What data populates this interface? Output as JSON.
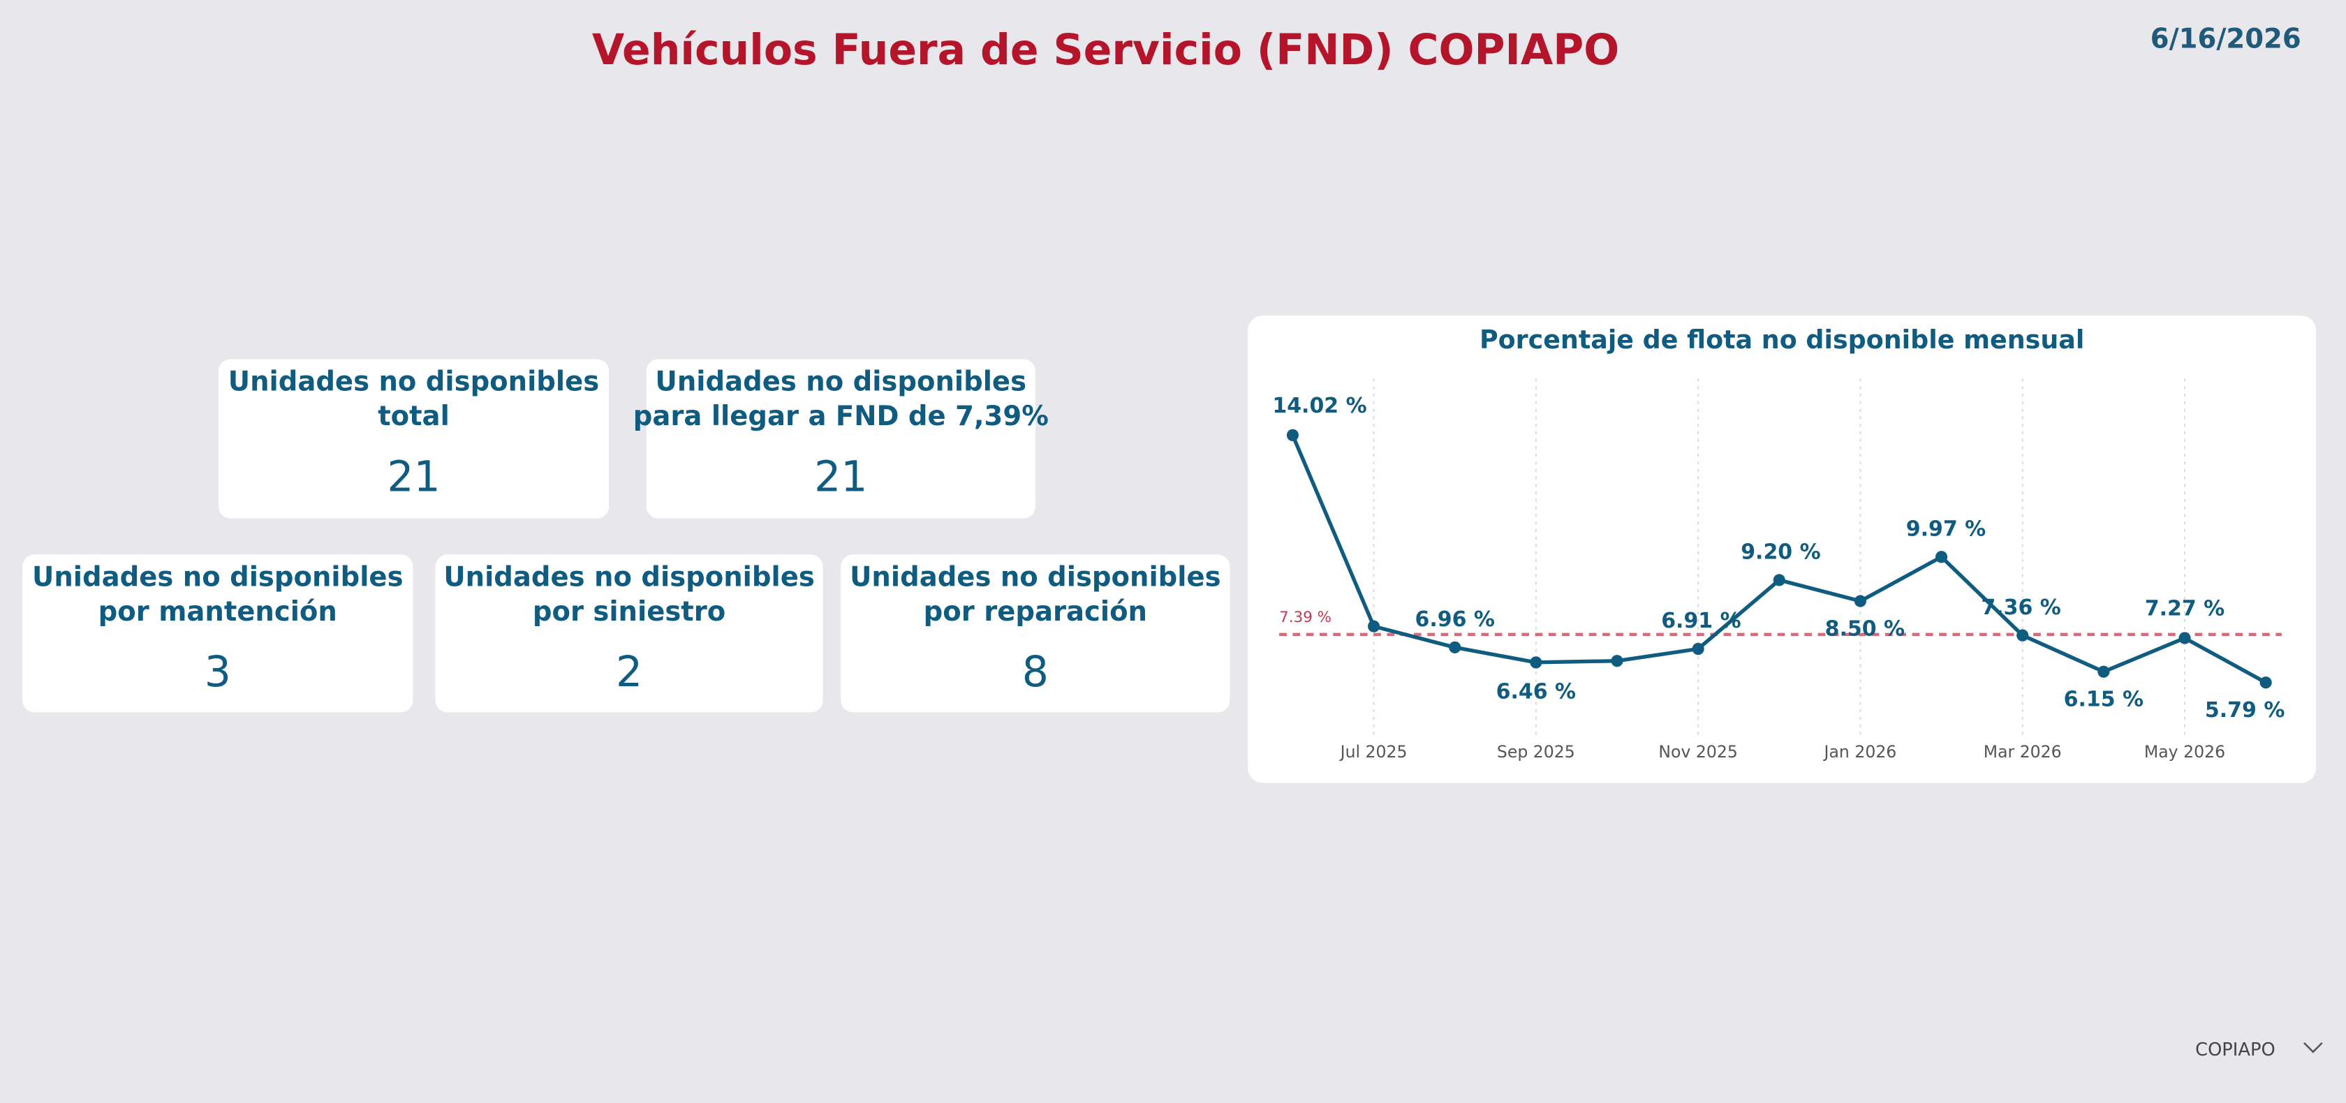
{
  "header": {
    "title": "Vehículos Fuera de Servicio (FND) COPIAPO",
    "date": "6/16/2026"
  },
  "kpi_cards": [
    {
      "title_lines": [
        "Unidades no disponibles",
        "total"
      ],
      "value": 21
    },
    {
      "title_lines": [
        "Unidades no disponibles",
        "para llegar a FND de 7,39%"
      ],
      "value": 21
    },
    {
      "title_lines": [
        "Unidades no disponibles",
        "por mantención"
      ],
      "value": 3
    },
    {
      "title_lines": [
        "Unidades no disponibles",
        "por siniestro"
      ],
      "value": 2
    },
    {
      "title_lines": [
        "Unidades no disponibles",
        "por reparación"
      ],
      "value": 8
    }
  ],
  "chart_data": {
    "type": "line",
    "title": "Porcentaje de flota no disponible mensual",
    "categories": [
      null,
      "Jul 2025",
      null,
      "Sep 2025",
      null,
      "Nov 2025",
      null,
      "Jan 2026",
      null,
      "Mar 2026",
      null,
      "May 2026",
      null
    ],
    "values": [
      14.02,
      7.66,
      6.96,
      6.46,
      6.51,
      6.91,
      9.2,
      8.5,
      9.97,
      7.36,
      6.15,
      7.27,
      5.79
    ],
    "value_labels": [
      "14.02 %",
      null,
      "6.96 %",
      "6.46 %",
      null,
      "6.91 %",
      "9.20 %",
      "8.50 %",
      "9.97 %",
      "7.36 %",
      "6.15 %",
      "7.27 %",
      "5.79 %"
    ],
    "color": "#0f5c80",
    "ylim": [
      4,
      16
    ],
    "reference_line": {
      "value": 7.39,
      "label": "7.39 %",
      "color": "#d9687a"
    }
  },
  "filter": {
    "label": "COPIAPO"
  }
}
